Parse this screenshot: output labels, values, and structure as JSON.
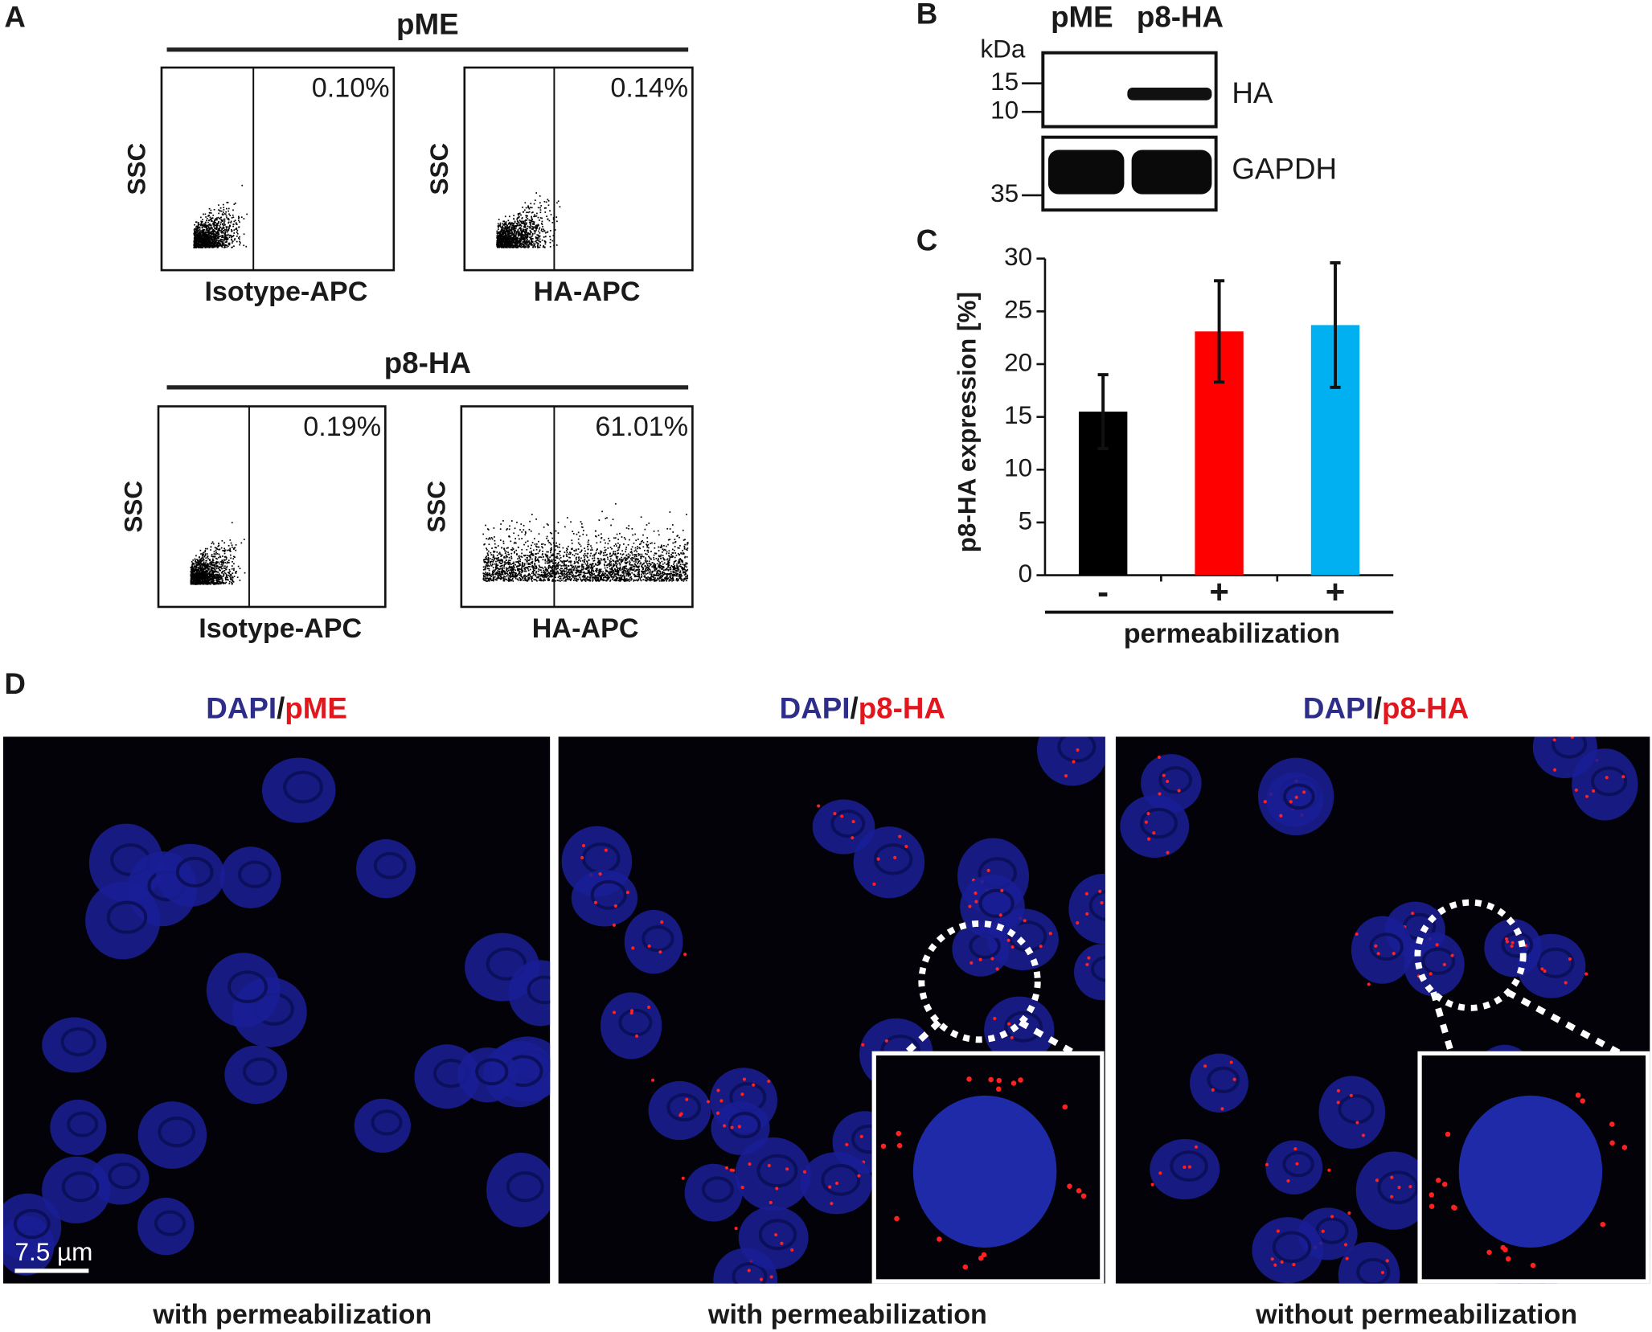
{
  "panels": {
    "A": {
      "label": "A",
      "groups": [
        {
          "title": "pME",
          "plots": [
            {
              "y_label": "SSC",
              "x_label": "Isotype-APC",
              "percent": "0.10%"
            },
            {
              "y_label": "SSC",
              "x_label": "HA-APC",
              "percent": "0.14%"
            }
          ]
        },
        {
          "title": "p8-HA",
          "plots": [
            {
              "y_label": "SSC",
              "x_label": "Isotype-APC",
              "percent": "0.19%"
            },
            {
              "y_label": "SSC",
              "x_label": "HA-APC",
              "percent": "61.01%"
            }
          ]
        }
      ]
    },
    "B": {
      "label": "B",
      "lanes": [
        "pME",
        "p8-HA"
      ],
      "unit": "kDa",
      "markers": [
        "15",
        "10",
        "35"
      ],
      "bands": [
        "HA",
        "GAPDH"
      ]
    },
    "C": {
      "label": "C"
    },
    "D": {
      "label": "D",
      "separator": "/",
      "scale_bar": "7.5 µm",
      "images": [
        {
          "stain": "DAPI",
          "target": "pME",
          "caption": "with permeabilization"
        },
        {
          "stain": "DAPI",
          "target": "p8-HA",
          "caption": "with permeabilization"
        },
        {
          "stain": "DAPI",
          "target": "p8-HA",
          "caption": "without permeabilization"
        }
      ]
    }
  },
  "chart_data": {
    "type": "bar",
    "ylabel": "p8-HA expression [%]",
    "xlabel": "permeabilization",
    "categories": [
      "-",
      "+",
      "+"
    ],
    "values": [
      15.5,
      23.1,
      23.7
    ],
    "errors": [
      3.5,
      4.8,
      5.9
    ],
    "colors": [
      "#000000",
      "#ff0000",
      "#00b0f0"
    ],
    "ylim": [
      0,
      30
    ],
    "yticks": [
      0,
      5,
      10,
      15,
      20,
      25,
      30
    ]
  }
}
